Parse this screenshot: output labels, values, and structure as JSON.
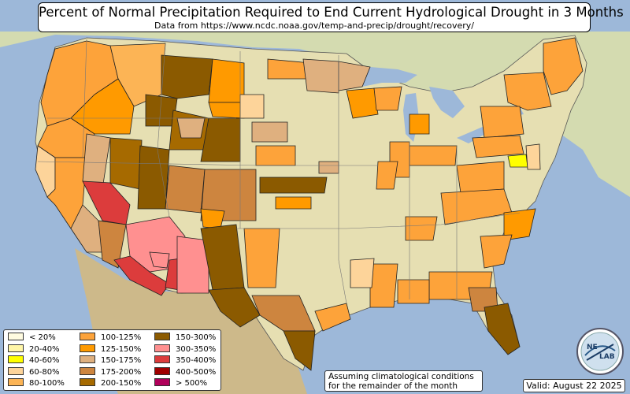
{
  "title": {
    "main": "Percent of Normal Precipitation Required to End Current Hydrological Drought in 3 Months",
    "subtitle": "Data from https://www.ncdc.noaa.gov/temp-and-precip/drought/recovery/"
  },
  "legend": {
    "items": [
      {
        "label": "< 20%",
        "color": "#fffbe0"
      },
      {
        "label": "20-40%",
        "color": "#fff6a8"
      },
      {
        "label": "40-60%",
        "color": "#ffff00"
      },
      {
        "label": "60-80%",
        "color": "#fdd49a"
      },
      {
        "label": "80-100%",
        "color": "#fcb455"
      },
      {
        "label": "100-125%",
        "color": "#fda33a"
      },
      {
        "label": "125-150%",
        "color": "#ff9a00"
      },
      {
        "label": "150-175%",
        "color": "#dfb07f"
      },
      {
        "label": "175-200%",
        "color": "#cd853f"
      },
      {
        "label": "200-150%",
        "color": "#a66a00"
      },
      {
        "label": "150-300%",
        "color": "#8b5a00"
      },
      {
        "label": "300-350%",
        "color": "#ff9090"
      },
      {
        "label": "350-400%",
        "color": "#dc3c3c"
      },
      {
        "label": "400-500%",
        "color": "#a00000"
      },
      {
        "label": "> 500%",
        "color": "#b0005a"
      }
    ]
  },
  "note": {
    "line1": "Assuming climatological conditions",
    "line2": "for the remainder of the month"
  },
  "valid": "Valid: August 22 2025",
  "logo": {
    "name": "NEXLAB"
  },
  "colors": {
    "ocean": "#9db8d9",
    "land": "#e6dfb2",
    "state_border": "#777777",
    "division_border": "#222222"
  }
}
